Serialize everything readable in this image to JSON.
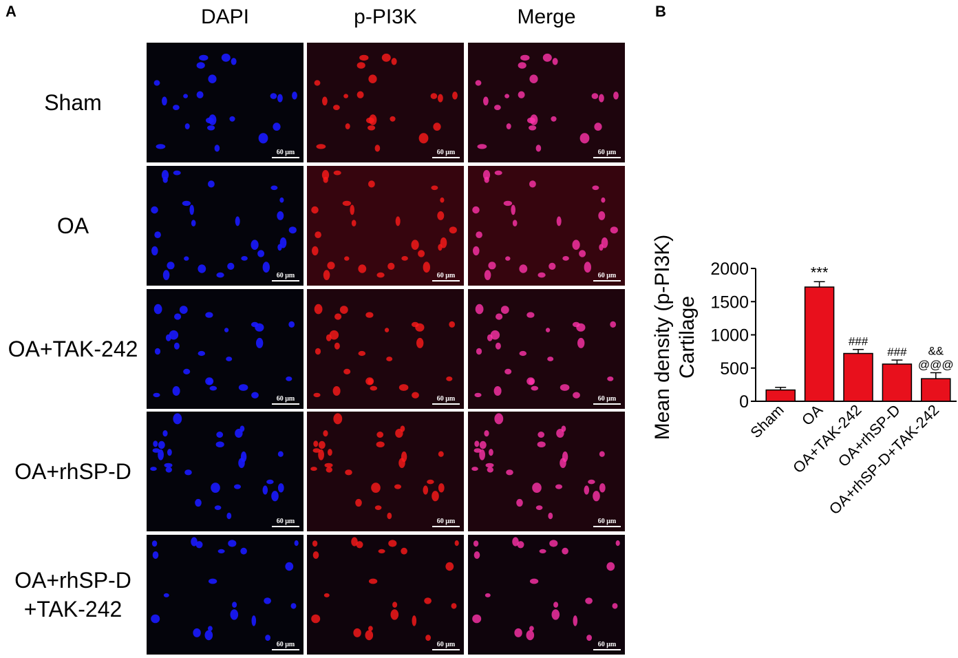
{
  "panels": {
    "a": "A",
    "b": "B"
  },
  "columns": [
    "DAPI",
    "p-PI3K",
    "Merge"
  ],
  "rows": [
    {
      "label_lines": [
        "Sham"
      ]
    },
    {
      "label_lines": [
        "OA"
      ]
    },
    {
      "label_lines": [
        "OA+TAK-242"
      ]
    },
    {
      "label_lines": [
        "OA+rhSP-D"
      ]
    },
    {
      "label_lines": [
        "OA+rhSP-D",
        "+TAK-242"
      ]
    }
  ],
  "scale_bar": "60 μm",
  "colors": {
    "dapi": "#1a1aff",
    "pi3k": "#ff1a1a",
    "merge": "#ff33aa",
    "bar": "#e8101c",
    "background": "#04040b"
  },
  "chart_data": {
    "type": "bar",
    "ylabel_lines": [
      "Mean density (p-PI3K)",
      "Cartilage"
    ],
    "categories": [
      "Sham",
      "OA",
      "OA+TAK-242",
      "OA+rhSP-D",
      "OA+rhSP-D+TAK-242"
    ],
    "values": [
      170,
      1720,
      720,
      560,
      340
    ],
    "errors": [
      40,
      80,
      60,
      60,
      90
    ],
    "annotations": [
      [
        ""
      ],
      [
        "***"
      ],
      [
        "###"
      ],
      [
        "###"
      ],
      [
        "&&",
        "@@@"
      ]
    ],
    "ylim": [
      0,
      2000
    ],
    "yticks": [
      0,
      500,
      1000,
      1500,
      2000
    ],
    "bar_color": "#e8101c"
  }
}
